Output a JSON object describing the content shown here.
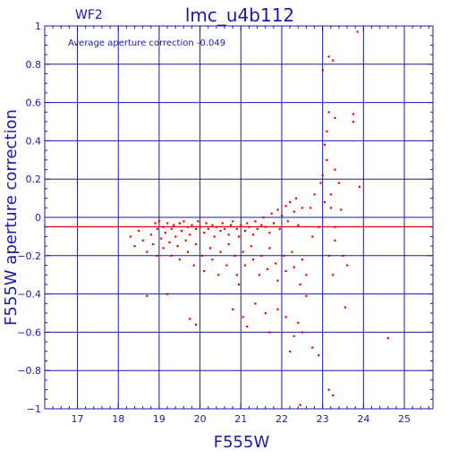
{
  "chart_data": {
    "type": "scatter",
    "title": "lmc_u4b112",
    "subtitle": "WF2",
    "xlabel": "F555W",
    "ylabel": "F555W aperture correction",
    "annotation": "Average aperture correction   -0.049",
    "average_correction": -0.049,
    "xlim": [
      16.2,
      25.7
    ],
    "ylim": [
      -1,
      1
    ],
    "x_ticks": [
      17,
      18,
      19,
      20,
      21,
      22,
      23,
      24,
      25
    ],
    "y_ticks": [
      -1,
      -0.8,
      -0.6,
      -0.4,
      -0.2,
      0,
      0.2,
      0.4,
      0.6,
      0.8,
      1
    ],
    "x_tick_labels": [
      "17",
      "18",
      "19",
      "20",
      "21",
      "22",
      "23",
      "24",
      "25"
    ],
    "y_tick_labels": [
      "−1",
      "−0.8",
      "−0.6",
      "−0.4",
      "−0.2",
      "0",
      "0.2",
      "0.4",
      "0.6",
      "0.8",
      "1"
    ],
    "grid": true,
    "colors": {
      "axis": "#1a1aa6",
      "points": "#ee0000",
      "average_line": "#ee0000"
    },
    "series": [
      {
        "values": [
          [
            18.9,
            -0.03
          ],
          [
            18.95,
            -0.06
          ],
          [
            19.0,
            -0.02
          ],
          [
            19.1,
            -0.05
          ],
          [
            19.15,
            -0.08
          ],
          [
            19.2,
            -0.03
          ],
          [
            19.3,
            -0.06
          ],
          [
            19.35,
            -0.04
          ],
          [
            19.4,
            -0.1
          ],
          [
            19.5,
            -0.03
          ],
          [
            19.55,
            -0.07
          ],
          [
            19.6,
            -0.02
          ],
          [
            19.7,
            -0.05
          ],
          [
            19.75,
            -0.09
          ],
          [
            19.8,
            -0.04
          ],
          [
            19.9,
            -0.06
          ],
          [
            19.95,
            -0.02
          ],
          [
            20.0,
            -0.05
          ],
          [
            20.1,
            -0.08
          ],
          [
            20.15,
            -0.03
          ],
          [
            20.2,
            -0.06
          ],
          [
            20.3,
            -0.04
          ],
          [
            20.35,
            -0.1
          ],
          [
            20.4,
            -0.05
          ],
          [
            20.5,
            -0.07
          ],
          [
            20.55,
            -0.03
          ],
          [
            20.6,
            -0.06
          ],
          [
            20.7,
            -0.09
          ],
          [
            20.75,
            -0.04
          ],
          [
            20.8,
            -0.02
          ],
          [
            20.9,
            -0.06
          ],
          [
            20.95,
            -0.1
          ],
          [
            21.0,
            -0.04
          ],
          [
            21.1,
            -0.07
          ],
          [
            21.15,
            -0.03
          ],
          [
            21.2,
            -0.05
          ],
          [
            21.3,
            -0.09
          ],
          [
            21.35,
            -0.02
          ],
          [
            21.4,
            -0.06
          ],
          [
            21.5,
            -0.04
          ],
          [
            21.55,
            0.0
          ],
          [
            21.6,
            -0.05
          ],
          [
            21.7,
            -0.08
          ],
          [
            21.75,
            0.02
          ],
          [
            21.8,
            -0.03
          ],
          [
            21.9,
            0.04
          ],
          [
            21.95,
            -0.06
          ],
          [
            22.0,
            0.01
          ],
          [
            22.1,
            0.06
          ],
          [
            22.15,
            -0.02
          ],
          [
            22.2,
            0.08
          ],
          [
            22.3,
            0.03
          ],
          [
            22.35,
            0.1
          ],
          [
            22.4,
            -0.04
          ],
          [
            22.5,
            0.05
          ],
          [
            18.3,
            -0.1
          ],
          [
            18.4,
            -0.15
          ],
          [
            18.5,
            -0.07
          ],
          [
            18.6,
            -0.12
          ],
          [
            18.7,
            -0.18
          ],
          [
            18.8,
            -0.09
          ],
          [
            18.85,
            -0.14
          ],
          [
            18.95,
            -0.2
          ],
          [
            19.05,
            -0.11
          ],
          [
            19.1,
            -0.16
          ],
          [
            19.25,
            -0.13
          ],
          [
            19.3,
            -0.2
          ],
          [
            19.45,
            -0.15
          ],
          [
            19.5,
            -0.22
          ],
          [
            19.65,
            -0.12
          ],
          [
            19.7,
            -0.18
          ],
          [
            19.85,
            -0.25
          ],
          [
            19.9,
            -0.14
          ],
          [
            20.05,
            -0.2
          ],
          [
            20.1,
            -0.28
          ],
          [
            20.25,
            -0.16
          ],
          [
            20.3,
            -0.22
          ],
          [
            20.45,
            -0.3
          ],
          [
            20.5,
            -0.18
          ],
          [
            20.65,
            -0.25
          ],
          [
            20.7,
            -0.14
          ],
          [
            20.85,
            -0.2
          ],
          [
            20.9,
            -0.3
          ],
          [
            21.05,
            -0.18
          ],
          [
            21.1,
            -0.25
          ],
          [
            21.25,
            -0.15
          ],
          [
            21.3,
            -0.22
          ],
          [
            21.45,
            -0.3
          ],
          [
            21.5,
            -0.2
          ],
          [
            21.65,
            -0.27
          ],
          [
            21.7,
            -0.16
          ],
          [
            21.85,
            -0.24
          ],
          [
            21.9,
            -0.33
          ],
          [
            22.05,
            -0.2
          ],
          [
            22.1,
            -0.28
          ],
          [
            22.25,
            -0.18
          ],
          [
            22.3,
            -0.26
          ],
          [
            22.45,
            -0.35
          ],
          [
            22.5,
            -0.22
          ],
          [
            22.6,
            -0.3
          ],
          [
            22.7,
            0.05
          ],
          [
            22.75,
            -0.1
          ],
          [
            22.8,
            0.12
          ],
          [
            22.9,
            -0.05
          ],
          [
            22.95,
            0.18
          ],
          [
            23.0,
            0.22
          ],
          [
            23.05,
            0.08
          ],
          [
            23.1,
            0.3
          ],
          [
            23.15,
            -0.2
          ],
          [
            23.2,
            0.12
          ],
          [
            23.25,
            -0.3
          ],
          [
            23.3,
            0.25
          ],
          [
            23.05,
            0.38
          ],
          [
            23.1,
            0.45
          ],
          [
            23.15,
            0.55
          ],
          [
            23.2,
            0.05
          ],
          [
            23.3,
            -0.12
          ],
          [
            23.4,
            0.18
          ],
          [
            23.5,
            -0.2
          ],
          [
            23.6,
            -0.25
          ],
          [
            23.0,
            0.77
          ],
          [
            23.15,
            0.84
          ],
          [
            23.25,
            0.82
          ],
          [
            23.3,
            0.52
          ],
          [
            23.75,
            0.5
          ],
          [
            23.75,
            0.54
          ],
          [
            23.85,
            0.97
          ],
          [
            23.9,
            0.16
          ],
          [
            23.45,
            0.04
          ],
          [
            23.3,
            -0.05
          ],
          [
            18.7,
            -0.41
          ],
          [
            19.2,
            -0.4
          ],
          [
            19.75,
            -0.53
          ],
          [
            19.9,
            -0.56
          ],
          [
            20.8,
            -0.48
          ],
          [
            20.95,
            -0.35
          ],
          [
            21.05,
            -0.52
          ],
          [
            21.15,
            -0.57
          ],
          [
            21.35,
            -0.45
          ],
          [
            21.6,
            -0.5
          ],
          [
            21.7,
            -0.6
          ],
          [
            21.9,
            -0.48
          ],
          [
            22.1,
            -0.52
          ],
          [
            22.2,
            -0.7
          ],
          [
            22.3,
            -0.62
          ],
          [
            22.4,
            -0.55
          ],
          [
            22.5,
            -0.6
          ],
          [
            22.75,
            -0.68
          ],
          [
            22.9,
            -0.72
          ],
          [
            23.15,
            -0.9
          ],
          [
            23.25,
            -0.93
          ],
          [
            23.55,
            -0.47
          ],
          [
            24.6,
            -0.63
          ],
          [
            22.45,
            -0.98
          ],
          [
            22.6,
            -0.41
          ]
        ]
      }
    ]
  }
}
